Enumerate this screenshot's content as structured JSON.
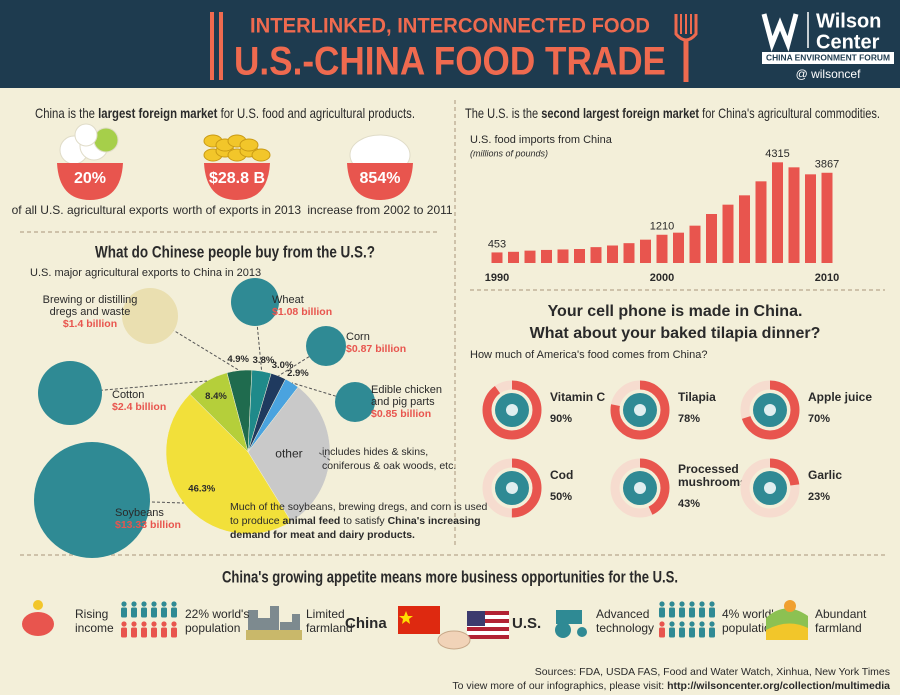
{
  "header": {
    "kicker": "INTERLINKED, INTERCONNECTED FOOD",
    "title": "U.S.-CHINA FOOD TRADE",
    "org": [
      "Wilson",
      "Center"
    ],
    "forum": "CHINA ENVIRONMENT FORUM",
    "handle": "@ wilsoncef"
  },
  "market": {
    "headline": [
      "China is the ",
      {
        "text": "largest foreign market",
        "weight": "bold"
      },
      " for U.S. food and agricultural products."
    ],
    "stats": [
      {
        "value": "20%",
        "caption": "of all U.S. agricultural exports"
      },
      {
        "value": "$28.8 B",
        "caption": "worth of exports in 2013"
      },
      {
        "value": "854%",
        "caption": "increase from 2002 to 2011"
      }
    ]
  },
  "exports": {
    "title": "What do Chinese people buy from the U.S.?",
    "subtitle": "U.S. major agricultural exports to China in 2013",
    "other_note": [
      "includes hides & skins,",
      "coniferous & oak woods, etc."
    ],
    "feed_note": [
      "Much of the soybeans, brewing dregs, and corn is used",
      [
        "to produce ",
        {
          "text": "animal feed",
          "weight": "bold"
        },
        " to satisfy ",
        {
          "text": "China's increasing",
          "weight": "bold"
        }
      ],
      [
        {
          "text": "demand for meat and dairy products.",
          "weight": "bold"
        }
      ]
    ]
  },
  "imports_headline": [
    "The U.S. is the ",
    {
      "text": "second largest foreign market",
      "weight": "bold"
    },
    " for China's agricultural commodities."
  ],
  "tilapia": {
    "title": [
      "Your cell phone is made in China.",
      "What about your baked tilapia dinner?"
    ],
    "question": "How much of America's food comes from China?"
  },
  "opportunities": {
    "title": "China's growing appetite means more business opportunities for the U.S.",
    "china_label": "China",
    "us_label": "U.S.",
    "china": [
      [
        "Rising",
        "income"
      ],
      [
        "22% world's",
        "population"
      ],
      [
        "Limited",
        "farmland"
      ]
    ],
    "us": [
      [
        "Advanced",
        "technology"
      ],
      [
        "4% world's",
        "population"
      ],
      [
        "Abundant",
        "farmland"
      ]
    ]
  },
  "sources": [
    "Sources: FDA, USDA FAS, Food and Water Watch, Xinhua, New York Times",
    [
      "To view more of our infographics, please visit: ",
      {
        "text": "http://wilsoncenter.org/collection/multimedia",
        "weight": "bold"
      }
    ]
  ],
  "chart_data": [
    {
      "type": "bar",
      "title": "U.S. food imports from China",
      "subtitle": "(millions of pounds)",
      "x": [
        1990,
        1991,
        1992,
        1993,
        1994,
        1995,
        1996,
        1997,
        1998,
        1999,
        2000,
        2001,
        2002,
        2003,
        2004,
        2005,
        2006,
        2007,
        2008,
        2009,
        2010
      ],
      "values": [
        453,
        480,
        530,
        560,
        580,
        600,
        680,
        750,
        850,
        1000,
        1210,
        1300,
        1600,
        2100,
        2500,
        2900,
        3500,
        4315,
        4100,
        3800,
        3867
      ],
      "value_labels": [
        "453",
        null,
        null,
        null,
        null,
        null,
        null,
        null,
        null,
        null,
        "1210",
        null,
        null,
        null,
        null,
        null,
        null,
        "4315",
        null,
        null,
        "3867"
      ],
      "xlim": [
        1989.5,
        2010.5
      ],
      "xticks": [
        1990,
        2000,
        2010
      ],
      "ylim": [
        0,
        4500
      ],
      "color": "#e8554e"
    },
    {
      "type": "pie",
      "categories": [
        [
          "Brewing or distilling",
          "dregs and waste"
        ],
        [
          "Wheat"
        ],
        [
          "Corn"
        ],
        [
          "Edible chicken",
          "and pig parts"
        ],
        [
          "other"
        ],
        [
          "Soybeans"
        ],
        [
          "Cotton"
        ]
      ],
      "values": [
        4.9,
        3.8,
        3.0,
        2.9,
        30.7,
        46.3,
        8.4
      ],
      "value_labels": [
        "4.9%",
        "3.8%",
        "3.0%",
        "2.9%",
        null,
        "46.3%",
        "8.4%"
      ],
      "amounts": [
        "$1.4 billion",
        "$1.08 billion",
        "$0.87 billion",
        "$0.85 billion",
        null,
        "$13.33 billion",
        "$2.4 billion"
      ],
      "colors": [
        "#1f6b4e",
        "#1f8a8a",
        "#1f3a5f",
        "#4aa3df",
        "#c9c9c9",
        "#f2e03a",
        "#b5cf3a"
      ]
    },
    {
      "type": "donut",
      "categories": [
        [
          "Vitamin C"
        ],
        [
          "Tilapia"
        ],
        [
          "Apple juice"
        ],
        [
          "Cod"
        ],
        [
          "Processed",
          "mushrooms"
        ],
        [
          "Garlic"
        ]
      ],
      "values": [
        90,
        78,
        70,
        50,
        43,
        23
      ],
      "value_labels": [
        "90%",
        "78%",
        "70%",
        "50%",
        "43%",
        "23%"
      ],
      "range": [
        0,
        100
      ],
      "color": "#e8554e",
      "track_color": "#f6dccf"
    }
  ]
}
